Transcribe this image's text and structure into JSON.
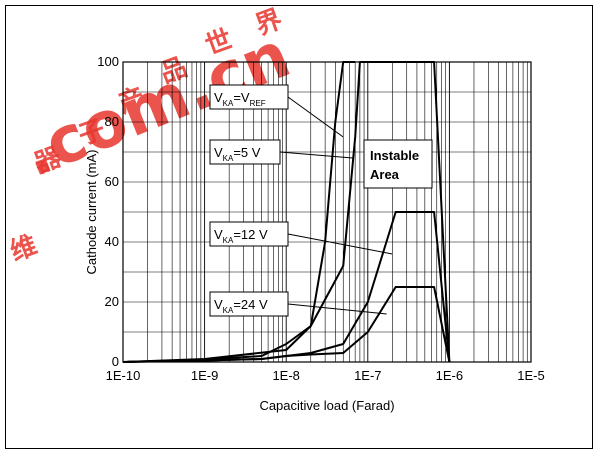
{
  "watermark": {
    "glyphs": [
      "器",
      "世",
      "界",
      "子",
      "产",
      "品",
      "维"
    ],
    "text": ".com.cn",
    "color": "#e23a2a"
  },
  "chart_data": {
    "type": "line",
    "title": "",
    "xlabel": "Capacitive load (Farad)",
    "ylabel": "Cathode current (mA)",
    "xscale": "log",
    "xlim": [
      1e-10,
      1e-05
    ],
    "ylim": [
      0,
      100
    ],
    "grid": true,
    "x_ticks": [
      "1E-10",
      "1E-9",
      "1E-8",
      "1E-7",
      "1E-6",
      "1E-5"
    ],
    "y_ticks": [
      "0",
      "20",
      "40",
      "60",
      "80",
      "100"
    ],
    "series": [
      {
        "name": "V_KA=V_REF",
        "label": {
          "main": "V",
          "sub": "KA",
          "mid": "=V",
          "sub2": "REF",
          "tail": ""
        },
        "points": [
          [
            1e-10,
            0
          ],
          [
            1e-09,
            1
          ],
          [
            1e-08,
            4
          ],
          [
            2e-08,
            12
          ],
          [
            3e-08,
            40
          ],
          [
            4e-08,
            80
          ],
          [
            5e-08,
            100
          ],
          [
            6e-08,
            100
          ],
          [
            7e-08,
            100
          ]
        ]
      },
      {
        "name": "V_KA=5 V",
        "label": {
          "main": "V",
          "sub": "KA",
          "mid": "=5 V",
          "sub2": "",
          "tail": ""
        },
        "points": [
          [
            1e-10,
            0
          ],
          [
            1e-09,
            0.8
          ],
          [
            5e-09,
            2
          ],
          [
            1e-08,
            6
          ],
          [
            2e-08,
            12
          ],
          [
            5e-08,
            32
          ],
          [
            7e-08,
            75
          ],
          [
            8e-08,
            100
          ],
          [
            6.5e-07,
            100
          ],
          [
            1e-06,
            0
          ]
        ]
      },
      {
        "name": "V_KA=12 V",
        "label": {
          "main": "V",
          "sub": "KA",
          "mid": "=12 V",
          "sub2": "",
          "tail": ""
        },
        "points": [
          [
            1e-10,
            0
          ],
          [
            1e-09,
            0.5
          ],
          [
            5e-09,
            1
          ],
          [
            1e-08,
            2
          ],
          [
            2e-08,
            3
          ],
          [
            5e-08,
            6
          ],
          [
            1e-07,
            20
          ],
          [
            2.2e-07,
            50
          ],
          [
            6.5e-07,
            50
          ],
          [
            1e-06,
            0
          ]
        ]
      },
      {
        "name": "V_KA=24 V",
        "label": {
          "main": "V",
          "sub": "KA",
          "mid": "=24 V",
          "sub2": "",
          "tail": ""
        },
        "points": [
          [
            1e-10,
            0
          ],
          [
            1e-09,
            0.5
          ],
          [
            5e-09,
            1
          ],
          [
            1e-08,
            2
          ],
          [
            2e-08,
            2.5
          ],
          [
            5e-08,
            3
          ],
          [
            1e-07,
            10
          ],
          [
            2.2e-07,
            25
          ],
          [
            6.5e-07,
            25
          ],
          [
            1e-06,
            0
          ]
        ]
      }
    ],
    "annotation": [
      "Instable",
      "Area"
    ]
  }
}
